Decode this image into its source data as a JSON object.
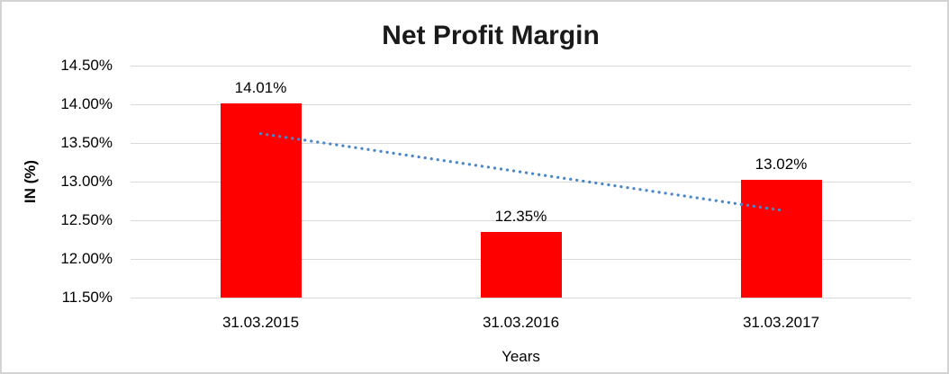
{
  "chart_data": {
    "type": "bar",
    "title": "Net Profit Margin",
    "xlabel": "Years",
    "ylabel": "IN (%)",
    "categories": [
      "31.03.2015",
      "31.03.2016",
      "31.03.2017"
    ],
    "values": [
      14.01,
      12.35,
      13.02
    ],
    "value_labels": [
      "14.01%",
      "12.35%",
      "13.02%"
    ],
    "ylim": [
      11.5,
      14.5
    ],
    "ytick_step": 0.5,
    "ytick_labels_top_to_bottom": [
      "14.50%",
      "14.00%",
      "13.50%",
      "13.00%",
      "12.50%",
      "12.00%",
      "11.50%"
    ],
    "grid": true,
    "legend": "none",
    "trendline": {
      "type": "linear",
      "style": "dotted",
      "start_value": 13.62,
      "end_value": 12.63
    },
    "colors": {
      "bar": "#ff0000",
      "gridline": "#d9d9d9",
      "trendline": "#4a86c8",
      "text": "#000000",
      "frame_border": "#d3d3d3",
      "background": "#ffffff"
    }
  }
}
